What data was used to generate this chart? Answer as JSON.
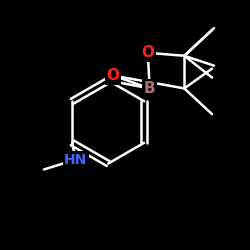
{
  "background_color": "#000000",
  "bond_color": "#ffffff",
  "atom_colors": {
    "B": "#b07070",
    "O": "#ff2020",
    "N": "#4466ff",
    "C": "#ffffff"
  },
  "figsize": [
    2.5,
    2.5
  ],
  "dpi": 100,
  "bond_lw": 1.8
}
